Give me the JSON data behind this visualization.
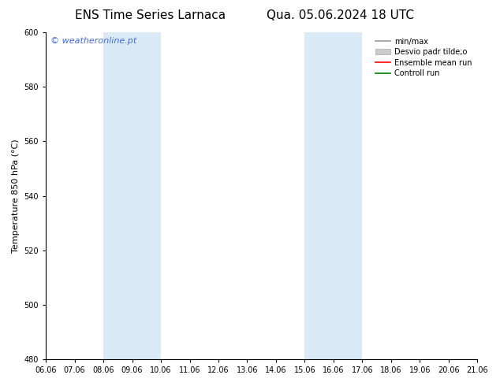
{
  "title_left": "ENS Time Series Larnaca",
  "title_right": "Qua. 05.06.2024 18 UTC",
  "ylabel": "Temperature 850 hPa (°C)",
  "ylim": [
    480,
    600
  ],
  "yticks": [
    480,
    500,
    520,
    540,
    560,
    580,
    600
  ],
  "xlabel_ticks": [
    "06.06",
    "07.06",
    "08.06",
    "09.06",
    "10.06",
    "11.06",
    "12.06",
    "13.06",
    "14.06",
    "15.06",
    "16.06",
    "17.06",
    "18.06",
    "19.06",
    "20.06",
    "21.06"
  ],
  "shaded_regions": [
    {
      "xmin": 2,
      "xmax": 4,
      "color": "#daeaf7"
    },
    {
      "xmin": 9,
      "xmax": 11,
      "color": "#daeaf7"
    }
  ],
  "watermark_text": "© weatheronline.pt",
  "watermark_color": "#4169e1",
  "background_color": "#ffffff",
  "legend_items": [
    {
      "label": "min/max",
      "color": "#999999",
      "lw": 1.2,
      "patch": false
    },
    {
      "label": "Desvio padr tilde;o",
      "color": "#cccccc",
      "lw": 8,
      "patch": true
    },
    {
      "label": "Ensemble mean run",
      "color": "#ff0000",
      "lw": 1.2,
      "patch": false
    },
    {
      "label": "Controll run",
      "color": "#008000",
      "lw": 1.2,
      "patch": false
    }
  ],
  "title_fontsize": 11,
  "tick_fontsize": 7,
  "ylabel_fontsize": 8,
  "legend_fontsize": 7,
  "watermark_fontsize": 8
}
